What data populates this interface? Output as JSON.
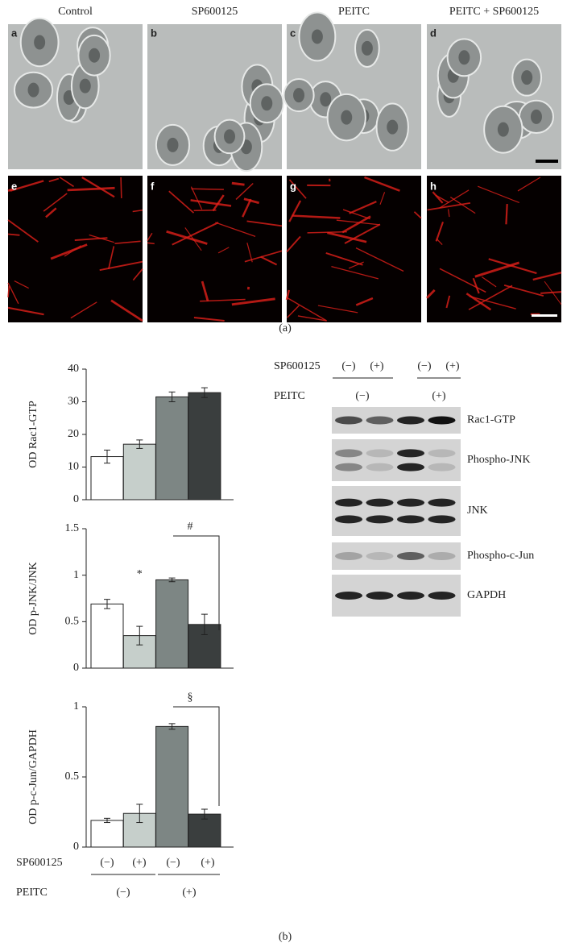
{
  "panel_a": {
    "columns": [
      "Control",
      "SP600125",
      "PEITC",
      "PEITC + SP600125"
    ],
    "letters": [
      "a",
      "b",
      "c",
      "d",
      "e",
      "f",
      "g",
      "h"
    ],
    "caption": "(a)"
  },
  "chart_data": [
    {
      "type": "bar",
      "ylabel": "OD Rac1-GTP",
      "values": [
        13.2,
        17,
        31.5,
        32.8
      ],
      "errors": [
        2,
        1.3,
        1.5,
        1.5
      ],
      "colors": [
        "#ffffff",
        "#c6cfcb",
        "#7d8684",
        "#3a3e3e"
      ],
      "ylim": [
        0,
        40
      ],
      "yticks": [
        0,
        10,
        20,
        30,
        40
      ],
      "annotations": []
    },
    {
      "type": "bar",
      "ylabel": "OD p-JNK/JNK",
      "values": [
        0.69,
        0.35,
        0.95,
        0.47
      ],
      "errors": [
        0.05,
        0.1,
        0.02,
        0.11
      ],
      "colors": [
        "#ffffff",
        "#c6cfcb",
        "#7d8684",
        "#3a3e3e"
      ],
      "ylim": [
        0,
        1.5
      ],
      "yticks": [
        0,
        0.5,
        1,
        1.5
      ],
      "annotations": [
        "*",
        "#"
      ]
    },
    {
      "type": "bar",
      "ylabel": "OD p-c-Jun/GAPDH",
      "values": [
        0.19,
        0.24,
        0.86,
        0.235
      ],
      "errors": [
        0.015,
        0.065,
        0.02,
        0.035
      ],
      "colors": [
        "#ffffff",
        "#c6cfcb",
        "#7d8684",
        "#3a3e3e"
      ],
      "ylim": [
        0,
        1
      ],
      "yticks": [
        0,
        0.5,
        1
      ],
      "annotations": [
        "§"
      ]
    }
  ],
  "chart_treatments": {
    "rows": [
      {
        "label": "SP600125",
        "values": [
          "(−)",
          "(+)",
          "(−)",
          "(+)"
        ]
      },
      {
        "label": "PEITC",
        "values": [
          "(−)",
          "(+)"
        ]
      }
    ]
  },
  "blot": {
    "treatments": {
      "rows": [
        {
          "label": "SP600125",
          "values": [
            "(−)",
            "(+)",
            "(−)",
            "(+)"
          ]
        },
        {
          "label": "PEITC",
          "values": [
            "(−)",
            "(+)"
          ]
        }
      ]
    },
    "bands": [
      "Rac1-GTP",
      "Phospho-JNK",
      "JNK",
      "Phospho-c-Jun",
      "GAPDH"
    ]
  },
  "caption_b": "(b)"
}
